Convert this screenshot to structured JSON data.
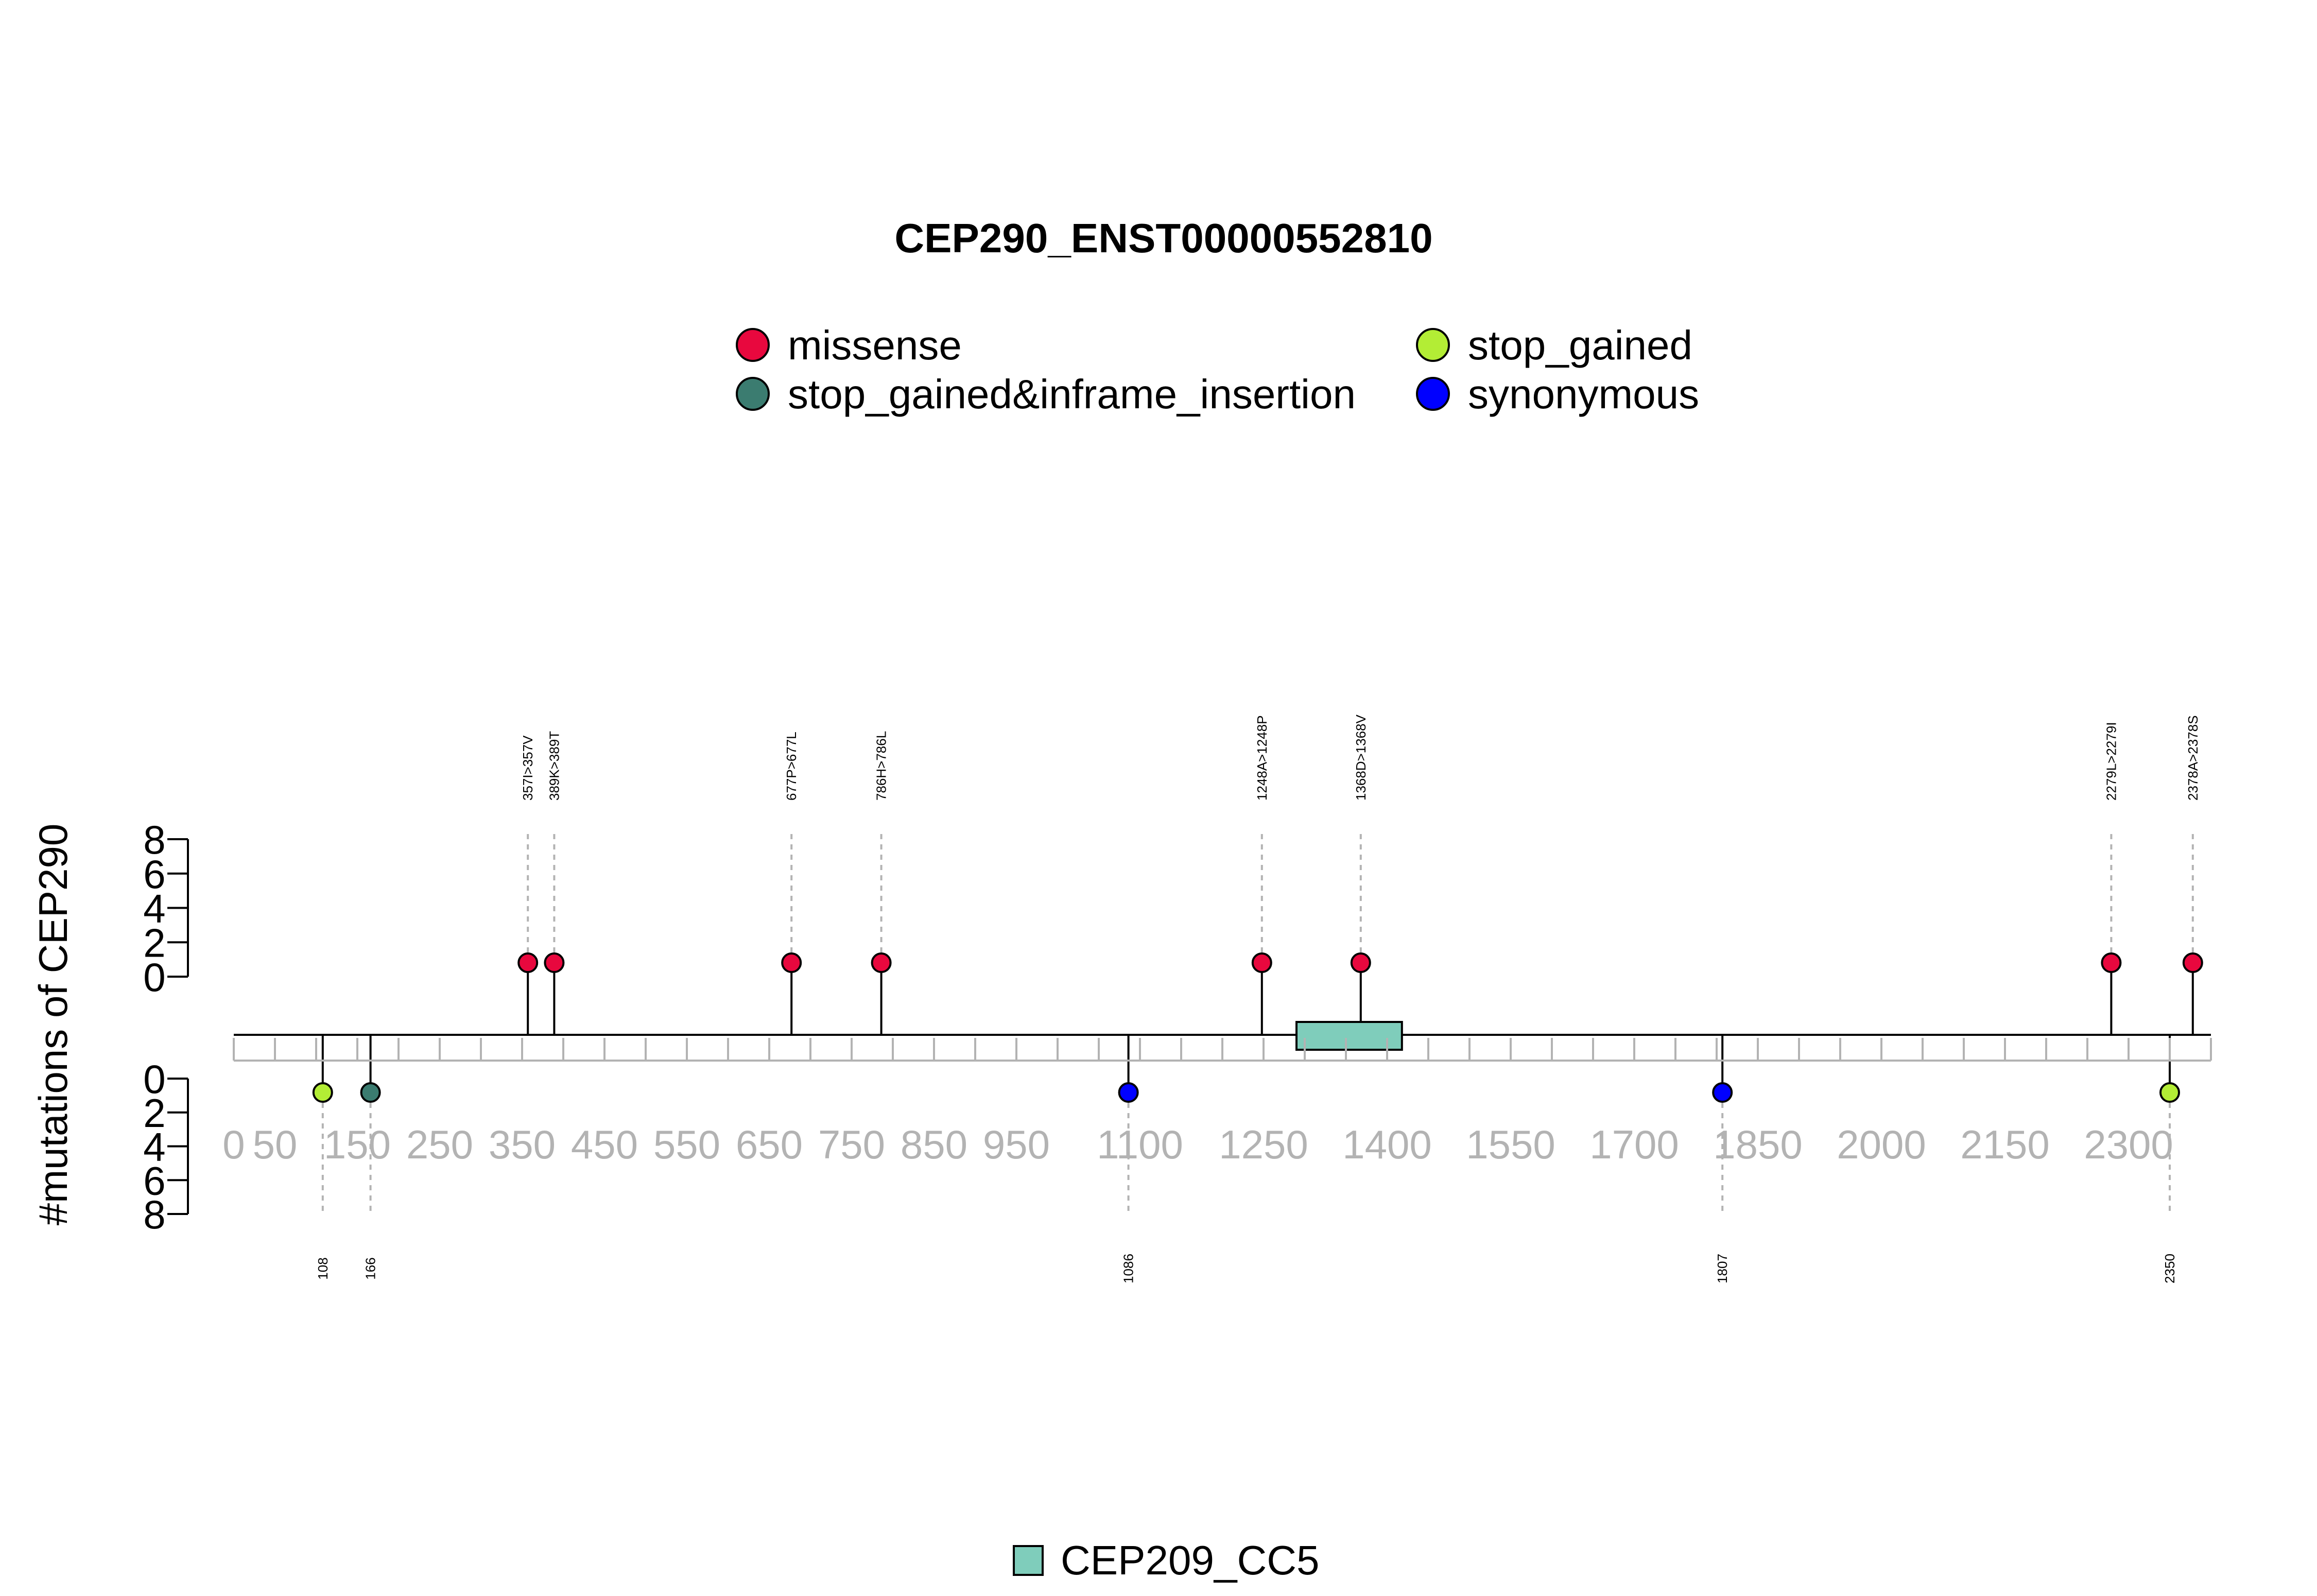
{
  "chart_data": {
    "type": "lollipop",
    "title": "CEP290_ENST00000552810",
    "ylabel": "#mutations of CEP290",
    "xlim": [
      0,
      2400
    ],
    "x_ticks": [
      0,
      50,
      150,
      250,
      350,
      450,
      550,
      650,
      750,
      850,
      950,
      1100,
      1250,
      1400,
      1550,
      1700,
      1850,
      2000,
      2150,
      2300
    ],
    "ylim_upper": [
      0,
      8
    ],
    "ylim_lower": [
      0,
      8
    ],
    "y_ticks_upper": [
      "0",
      "2",
      "4",
      "6",
      "8"
    ],
    "y_ticks_lower": [
      "0",
      "2",
      "4",
      "6",
      "8"
    ],
    "legend": {
      "placement": "top-center",
      "items": [
        {
          "name": "missense",
          "color": "#e8083e"
        },
        {
          "name": "stop_gained",
          "color": "#b3ed35"
        },
        {
          "name": "stop_gained&inframe_insertion",
          "color": "#3b7c70"
        },
        {
          "name": "synonymous",
          "color": "#0000ff"
        }
      ]
    },
    "domains": [
      {
        "name": "CEP209_CC5",
        "start": 1290,
        "end": 1418,
        "color": "#7fcdbb"
      }
    ],
    "mutations_upper": [
      {
        "pos": 357,
        "label": "357I>357V",
        "count": 1,
        "type": "missense",
        "color": "#e8083e"
      },
      {
        "pos": 389,
        "label": "389K>389T",
        "count": 1,
        "type": "missense",
        "color": "#e8083e"
      },
      {
        "pos": 677,
        "label": "677P>677L",
        "count": 1,
        "type": "missense",
        "color": "#e8083e"
      },
      {
        "pos": 786,
        "label": "786H>786L",
        "count": 1,
        "type": "missense",
        "color": "#e8083e"
      },
      {
        "pos": 1248,
        "label": "1248A>1248P",
        "count": 1,
        "type": "missense",
        "color": "#e8083e"
      },
      {
        "pos": 1368,
        "label": "1368D>1368V",
        "count": 1,
        "type": "missense",
        "color": "#e8083e"
      },
      {
        "pos": 2279,
        "label": "2279L>2279I",
        "count": 1,
        "type": "missense",
        "color": "#e8083e"
      },
      {
        "pos": 2378,
        "label": "2378A>2378S",
        "count": 1,
        "type": "missense",
        "color": "#e8083e"
      }
    ],
    "mutations_lower": [
      {
        "pos": 108,
        "label": "108",
        "count": 1,
        "type": "stop_gained",
        "color": "#b3ed35"
      },
      {
        "pos": 166,
        "label": "166",
        "count": 1,
        "type": "stop_gained&inframe_insertion",
        "color": "#3b7c70"
      },
      {
        "pos": 1086,
        "label": "1086",
        "count": 1,
        "type": "synonymous",
        "color": "#0000ff"
      },
      {
        "pos": 1807,
        "label": "1807",
        "count": 1,
        "type": "synonymous",
        "color": "#0000ff"
      },
      {
        "pos": 2350,
        "label": "2350",
        "count": 1,
        "type": "stop_gained",
        "color": "#b3ed35"
      }
    ]
  }
}
